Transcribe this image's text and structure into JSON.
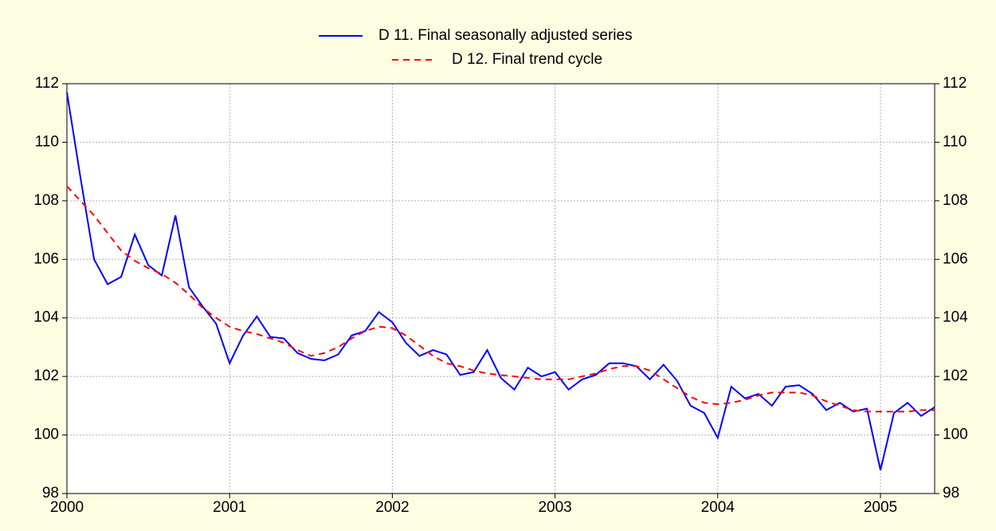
{
  "chart_data": {
    "type": "line",
    "x": [
      2000,
      2000.083,
      2000.167,
      2000.25,
      2000.333,
      2000.417,
      2000.5,
      2000.583,
      2000.667,
      2000.75,
      2000.833,
      2000.917,
      2001,
      2001.083,
      2001.167,
      2001.25,
      2001.333,
      2001.417,
      2001.5,
      2001.583,
      2001.667,
      2001.75,
      2001.833,
      2001.917,
      2002,
      2002.083,
      2002.167,
      2002.25,
      2002.333,
      2002.417,
      2002.5,
      2002.583,
      2002.667,
      2002.75,
      2002.833,
      2002.917,
      2003,
      2003.083,
      2003.167,
      2003.25,
      2003.333,
      2003.417,
      2003.5,
      2003.583,
      2003.667,
      2003.75,
      2003.833,
      2003.917,
      2004,
      2004.083,
      2004.167,
      2004.25,
      2004.333,
      2004.417,
      2004.5,
      2004.583,
      2004.667,
      2004.75,
      2004.833,
      2004.917,
      2005,
      2005.083,
      2005.167,
      2005.25,
      2005.333
    ],
    "series": [
      {
        "name": "D 11. Final seasonally adjusted series",
        "color": "#0000ff",
        "dash": false,
        "values": [
          111.7,
          108.8,
          106.0,
          105.15,
          105.4,
          106.85,
          105.8,
          105.45,
          107.5,
          105.05,
          104.4,
          103.8,
          102.45,
          103.4,
          104.05,
          103.35,
          103.3,
          102.8,
          102.6,
          102.55,
          102.75,
          103.4,
          103.55,
          104.2,
          103.85,
          103.15,
          102.7,
          102.9,
          102.75,
          102.05,
          102.15,
          102.9,
          101.95,
          101.55,
          102.3,
          102.0,
          102.15,
          101.55,
          101.9,
          102.05,
          102.45,
          102.45,
          102.35,
          101.9,
          102.4,
          101.85,
          101.0,
          100.75,
          99.9,
          101.65,
          101.25,
          101.4,
          101.0,
          101.65,
          101.7,
          101.4,
          100.85,
          101.1,
          100.8,
          100.9,
          98.8,
          100.75,
          101.1,
          100.65,
          100.95
        ]
      },
      {
        "name": "D 12. Final trend cycle",
        "color": "#ff0000",
        "dash": true,
        "values": [
          108.5,
          108.0,
          107.5,
          106.9,
          106.3,
          105.95,
          105.7,
          105.5,
          105.2,
          104.8,
          104.35,
          104.0,
          103.7,
          103.55,
          103.45,
          103.3,
          103.15,
          102.9,
          102.7,
          102.8,
          103.0,
          103.3,
          103.55,
          103.7,
          103.65,
          103.4,
          103.05,
          102.7,
          102.45,
          102.35,
          102.2,
          102.1,
          102.05,
          102.0,
          101.95,
          101.9,
          101.9,
          101.9,
          102.0,
          102.1,
          102.25,
          102.35,
          102.35,
          102.2,
          101.9,
          101.6,
          101.3,
          101.1,
          101.05,
          101.1,
          101.2,
          101.35,
          101.45,
          101.45,
          101.45,
          101.35,
          101.15,
          101.0,
          100.85,
          100.8,
          100.8,
          100.8,
          100.8,
          100.85,
          100.85
        ]
      }
    ],
    "xlim": [
      2000,
      2005.333
    ],
    "xticks": [
      2000,
      2001,
      2002,
      2003,
      2004,
      2005
    ],
    "ylim": [
      98,
      112
    ],
    "yticks": [
      98,
      100,
      102,
      104,
      106,
      108,
      110,
      112
    ],
    "grid": true,
    "legend": "top"
  }
}
